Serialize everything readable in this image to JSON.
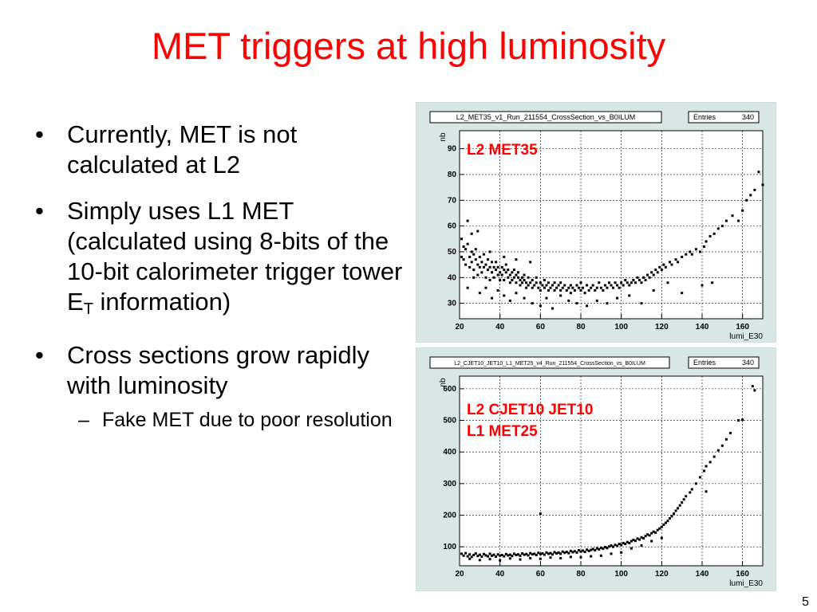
{
  "slide": {
    "title": "MET triggers at high luminosity",
    "slide_number": "5"
  },
  "bullets": [
    {
      "text": "Currently, MET is not calculated at L2"
    },
    {
      "text_main": "Simply uses L1 MET (calculated using 8-bits of the 10-bit calorimeter trigger tower E",
      "subscript": "T",
      "text_tail": "information)"
    },
    {
      "text": "Cross sections grow rapidly with luminosity",
      "sub": "Fake MET due to poor resolution"
    }
  ],
  "colors": {
    "title": "#ff0000",
    "annotation": "#ff0000",
    "panel_bg": "#d9e6e6",
    "plot_bg": "#ffffff",
    "marker": "#000000"
  },
  "chart_data": [
    {
      "type": "scatter",
      "title": "L2_MET35_v1_Run_211554_CrossSection_vs_B0ILUM",
      "stats_label": "Entries",
      "stats_value": "340",
      "annotation": "L2 MET35",
      "xlabel": "lumi_E30",
      "ylabel": "nb",
      "xlim": [
        20,
        170
      ],
      "ylim": [
        24,
        97
      ],
      "xticks": [
        20,
        40,
        60,
        80,
        100,
        120,
        140,
        160
      ],
      "yticks": [
        30,
        40,
        50,
        60,
        70,
        80,
        90
      ],
      "grid": true,
      "points": [
        [
          21,
          55
        ],
        [
          21,
          48
        ],
        [
          22,
          52
        ],
        [
          22,
          47
        ],
        [
          23,
          51
        ],
        [
          23,
          45
        ],
        [
          24,
          62
        ],
        [
          24,
          53
        ],
        [
          25,
          48
        ],
        [
          25,
          44
        ],
        [
          26,
          50
        ],
        [
          26,
          46
        ],
        [
          27,
          49
        ],
        [
          27,
          43
        ],
        [
          28,
          47
        ],
        [
          28,
          51
        ],
        [
          29,
          45
        ],
        [
          29,
          41
        ],
        [
          30,
          48
        ],
        [
          30,
          44
        ],
        [
          31,
          46
        ],
        [
          31,
          42
        ],
        [
          32,
          49
        ],
        [
          32,
          44
        ],
        [
          33,
          45
        ],
        [
          33,
          40
        ],
        [
          34,
          47
        ],
        [
          34,
          43
        ],
        [
          35,
          44
        ],
        [
          35,
          39
        ],
        [
          36,
          46
        ],
        [
          36,
          42
        ],
        [
          37,
          44
        ],
        [
          37,
          40
        ],
        [
          38,
          43
        ],
        [
          38,
          46
        ],
        [
          39,
          41
        ],
        [
          39,
          44
        ],
        [
          40,
          42
        ],
        [
          40,
          39
        ],
        [
          41,
          44
        ],
        [
          41,
          41
        ],
        [
          42,
          43
        ],
        [
          42,
          39
        ],
        [
          43,
          42
        ],
        [
          43,
          45
        ],
        [
          44,
          40
        ],
        [
          44,
          43
        ],
        [
          45,
          41
        ],
        [
          45,
          38
        ],
        [
          46,
          42
        ],
        [
          46,
          39
        ],
        [
          47,
          40
        ],
        [
          47,
          43
        ],
        [
          48,
          41
        ],
        [
          48,
          38
        ],
        [
          49,
          40
        ],
        [
          49,
          42
        ],
        [
          50,
          39
        ],
        [
          50,
          37
        ],
        [
          51,
          40
        ],
        [
          51,
          38
        ],
        [
          52,
          39
        ],
        [
          52,
          41
        ],
        [
          53,
          38
        ],
        [
          53,
          36
        ],
        [
          54,
          40
        ],
        [
          54,
          37
        ],
        [
          55,
          38
        ],
        [
          56,
          39
        ],
        [
          56,
          36
        ],
        [
          57,
          37
        ],
        [
          58,
          38
        ],
        [
          58,
          40
        ],
        [
          59,
          36
        ],
        [
          60,
          38
        ],
        [
          60,
          35
        ],
        [
          61,
          37
        ],
        [
          62,
          39
        ],
        [
          62,
          36
        ],
        [
          63,
          37
        ],
        [
          64,
          38
        ],
        [
          64,
          35
        ],
        [
          65,
          36
        ],
        [
          66,
          37
        ],
        [
          67,
          38
        ],
        [
          67,
          35
        ],
        [
          68,
          36
        ],
        [
          69,
          37
        ],
        [
          70,
          35
        ],
        [
          70,
          38
        ],
        [
          71,
          36
        ],
        [
          72,
          37
        ],
        [
          73,
          35
        ],
        [
          74,
          36
        ],
        [
          75,
          37
        ],
        [
          75,
          34
        ],
        [
          76,
          36
        ],
        [
          77,
          35
        ],
        [
          78,
          37
        ],
        [
          79,
          36
        ],
        [
          80,
          35
        ],
        [
          80,
          38
        ],
        [
          81,
          36
        ],
        [
          82,
          34
        ],
        [
          83,
          37
        ],
        [
          84,
          35
        ],
        [
          85,
          36
        ],
        [
          86,
          37
        ],
        [
          87,
          35
        ],
        [
          88,
          36
        ],
        [
          89,
          38
        ],
        [
          90,
          36
        ],
        [
          91,
          35
        ],
        [
          92,
          37
        ],
        [
          93,
          36
        ],
        [
          94,
          38
        ],
        [
          95,
          37
        ],
        [
          96,
          36
        ],
        [
          97,
          38
        ],
        [
          98,
          37
        ],
        [
          99,
          36
        ],
        [
          100,
          38
        ],
        [
          101,
          37
        ],
        [
          102,
          39
        ],
        [
          103,
          38
        ],
        [
          104,
          37
        ],
        [
          105,
          38
        ],
        [
          106,
          39
        ],
        [
          107,
          38
        ],
        [
          108,
          40
        ],
        [
          109,
          39
        ],
        [
          110,
          38
        ],
        [
          111,
          40
        ],
        [
          112,
          39
        ],
        [
          113,
          41
        ],
        [
          114,
          40
        ],
        [
          115,
          42
        ],
        [
          116,
          41
        ],
        [
          117,
          43
        ],
        [
          118,
          42
        ],
        [
          119,
          44
        ],
        [
          120,
          43
        ],
        [
          121,
          45
        ],
        [
          122,
          44
        ],
        [
          124,
          46
        ],
        [
          125,
          45
        ],
        [
          127,
          47
        ],
        [
          128,
          46
        ],
        [
          130,
          48
        ],
        [
          132,
          49
        ],
        [
          134,
          50
        ],
        [
          135,
          49
        ],
        [
          137,
          51
        ],
        [
          139,
          50
        ],
        [
          141,
          52
        ],
        [
          142,
          54
        ],
        [
          144,
          56
        ],
        [
          146,
          57
        ],
        [
          148,
          59
        ],
        [
          150,
          60
        ],
        [
          152,
          62
        ],
        [
          155,
          64
        ],
        [
          158,
          62
        ],
        [
          160,
          66
        ],
        [
          162,
          70
        ],
        [
          164,
          72
        ],
        [
          166,
          74
        ],
        [
          168,
          81
        ],
        [
          170,
          76
        ],
        [
          24,
          36
        ],
        [
          27,
          40
        ],
        [
          30,
          34
        ],
        [
          33,
          36
        ],
        [
          36,
          32
        ],
        [
          39,
          35
        ],
        [
          42,
          33
        ],
        [
          45,
          31
        ],
        [
          48,
          34
        ],
        [
          52,
          32
        ],
        [
          56,
          30
        ],
        [
          60,
          29
        ],
        [
          63,
          32
        ],
        [
          66,
          28
        ],
        [
          70,
          33
        ],
        [
          74,
          31
        ],
        [
          78,
          30
        ],
        [
          83,
          29
        ],
        [
          88,
          31
        ],
        [
          93,
          30
        ],
        [
          98,
          32
        ],
        [
          104,
          33
        ],
        [
          110,
          30
        ],
        [
          116,
          35
        ],
        [
          123,
          38
        ],
        [
          130,
          34
        ],
        [
          140,
          37
        ],
        [
          145,
          38
        ],
        [
          55,
          46
        ],
        [
          48,
          47
        ],
        [
          42,
          48
        ],
        [
          35,
          50
        ],
        [
          29,
          58
        ],
        [
          26,
          57
        ]
      ]
    },
    {
      "type": "scatter",
      "title": "L2_CJET10_JET10_L1_MET25_v4_Run_211554_CrossSection_vs_B0ILUM",
      "stats_label": "Entries",
      "stats_value": "340",
      "annotation_lines": [
        "L2 CJET10 JET10",
        "L1 MET25"
      ],
      "xlabel": "lumi_E30",
      "ylabel": "nb",
      "xlim": [
        20,
        170
      ],
      "ylim": [
        40,
        640
      ],
      "xticks": [
        20,
        40,
        60,
        80,
        100,
        120,
        140,
        160
      ],
      "yticks": [
        100,
        200,
        300,
        400,
        500,
        600
      ],
      "grid": true,
      "points": [
        [
          21,
          78
        ],
        [
          22,
          72
        ],
        [
          23,
          80
        ],
        [
          24,
          70
        ],
        [
          25,
          76
        ],
        [
          26,
          68
        ],
        [
          27,
          74
        ],
        [
          28,
          79
        ],
        [
          29,
          71
        ],
        [
          30,
          75
        ],
        [
          31,
          69
        ],
        [
          32,
          77
        ],
        [
          33,
          73
        ],
        [
          34,
          70
        ],
        [
          35,
          78
        ],
        [
          36,
          72
        ],
        [
          37,
          75
        ],
        [
          38,
          69
        ],
        [
          39,
          76
        ],
        [
          40,
          72
        ],
        [
          41,
          74
        ],
        [
          42,
          70
        ],
        [
          43,
          77
        ],
        [
          44,
          73
        ],
        [
          45,
          75
        ],
        [
          46,
          71
        ],
        [
          47,
          78
        ],
        [
          48,
          74
        ],
        [
          49,
          76
        ],
        [
          50,
          72
        ],
        [
          51,
          79
        ],
        [
          52,
          75
        ],
        [
          53,
          77
        ],
        [
          54,
          73
        ],
        [
          55,
          80
        ],
        [
          56,
          76
        ],
        [
          57,
          78
        ],
        [
          58,
          74
        ],
        [
          59,
          81
        ],
        [
          60,
          77
        ],
        [
          61,
          79
        ],
        [
          62,
          75
        ],
        [
          63,
          82
        ],
        [
          64,
          78
        ],
        [
          65,
          80
        ],
        [
          66,
          76
        ],
        [
          67,
          83
        ],
        [
          68,
          79
        ],
        [
          69,
          82
        ],
        [
          70,
          78
        ],
        [
          71,
          85
        ],
        [
          72,
          81
        ],
        [
          73,
          84
        ],
        [
          74,
          80
        ],
        [
          75,
          87
        ],
        [
          76,
          83
        ],
        [
          77,
          86
        ],
        [
          78,
          82
        ],
        [
          79,
          89
        ],
        [
          80,
          85
        ],
        [
          81,
          88
        ],
        [
          82,
          84
        ],
        [
          83,
          91
        ],
        [
          84,
          87
        ],
        [
          85,
          90
        ],
        [
          86,
          93
        ],
        [
          87,
          89
        ],
        [
          88,
          95
        ],
        [
          89,
          92
        ],
        [
          90,
          97
        ],
        [
          91,
          94
        ],
        [
          92,
          99
        ],
        [
          93,
          96
        ],
        [
          94,
          101
        ],
        [
          95,
          104
        ],
        [
          96,
          100
        ],
        [
          97,
          106
        ],
        [
          98,
          103
        ],
        [
          99,
          109
        ],
        [
          100,
          106
        ],
        [
          101,
          112
        ],
        [
          102,
          109
        ],
        [
          103,
          115
        ],
        [
          104,
          112
        ],
        [
          105,
          118
        ],
        [
          106,
          122
        ],
        [
          107,
          119
        ],
        [
          108,
          126
        ],
        [
          109,
          123
        ],
        [
          110,
          130
        ],
        [
          111,
          127
        ],
        [
          112,
          134
        ],
        [
          113,
          139
        ],
        [
          114,
          136
        ],
        [
          115,
          143
        ],
        [
          116,
          148
        ],
        [
          117,
          145
        ],
        [
          118,
          153
        ],
        [
          119,
          158
        ],
        [
          120,
          163
        ],
        [
          121,
          170
        ],
        [
          122,
          176
        ],
        [
          123,
          182
        ],
        [
          124,
          190
        ],
        [
          125,
          197
        ],
        [
          126,
          205
        ],
        [
          127,
          214
        ],
        [
          128,
          222
        ],
        [
          129,
          231
        ],
        [
          130,
          240
        ],
        [
          131,
          250
        ],
        [
          132,
          260
        ],
        [
          134,
          272
        ],
        [
          135,
          282
        ],
        [
          137,
          300
        ],
        [
          139,
          320
        ],
        [
          141,
          340
        ],
        [
          142,
          355
        ],
        [
          144,
          368
        ],
        [
          146,
          385
        ],
        [
          148,
          405
        ],
        [
          150,
          420
        ],
        [
          152,
          440
        ],
        [
          154,
          460
        ],
        [
          158,
          500
        ],
        [
          160,
          502
        ],
        [
          165,
          608
        ],
        [
          166,
          595
        ],
        [
          142,
          275
        ],
        [
          60,
          205
        ],
        [
          25,
          62
        ],
        [
          30,
          58
        ],
        [
          35,
          61
        ],
        [
          40,
          57
        ],
        [
          45,
          63
        ],
        [
          50,
          60
        ],
        [
          55,
          64
        ],
        [
          60,
          62
        ],
        [
          65,
          66
        ],
        [
          70,
          64
        ],
        [
          75,
          68
        ],
        [
          80,
          67
        ],
        [
          85,
          70
        ],
        [
          90,
          72
        ],
        [
          95,
          78
        ],
        [
          100,
          82
        ],
        [
          105,
          95
        ],
        [
          110,
          104
        ],
        [
          115,
          118
        ],
        [
          120,
          128
        ]
      ]
    }
  ]
}
